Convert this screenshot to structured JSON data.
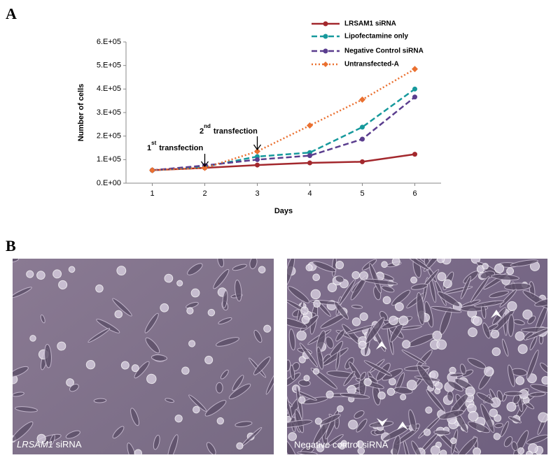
{
  "panel_a": {
    "label": "A",
    "chart_data": {
      "type": "line",
      "x": [
        1,
        2,
        3,
        4,
        5,
        6
      ],
      "xlim": [
        0.5,
        6.5
      ],
      "xticks": [
        1,
        2,
        3,
        4,
        5,
        6
      ],
      "ylim": [
        0,
        600000
      ],
      "yticks": [
        {
          "value": 0,
          "label": "0.E+00"
        },
        {
          "value": 100000,
          "label": "1.E+05"
        },
        {
          "value": 200000,
          "label": "2.E+05"
        },
        {
          "value": 300000,
          "label": "3.E+05"
        },
        {
          "value": 400000,
          "label": "4.E+05"
        },
        {
          "value": 500000,
          "label": "5.E+05"
        },
        {
          "value": 600000,
          "label": "6.E+05"
        }
      ],
      "x_label": "Days",
      "y_label": "Number of cells",
      "grid": false,
      "legend": "upper right",
      "series": [
        {
          "name": "LRSAM1 siRNA",
          "color": "#a3282d",
          "linestyle": "solid",
          "marker": "circle",
          "values": [
            55000,
            65000,
            77000,
            86000,
            91000,
            123000
          ]
        },
        {
          "name": "Lipofectamine only",
          "color": "#16999c",
          "linestyle": "dashed",
          "marker": "circle",
          "values": [
            55000,
            70000,
            113000,
            130000,
            238000,
            400000
          ]
        },
        {
          "name": "Negative Control siRNA",
          "color": "#5a3d8e",
          "linestyle": "dashed",
          "marker": "circle",
          "values": [
            55000,
            75000,
            100000,
            117000,
            187000,
            366000
          ]
        },
        {
          "name": "Untransfected-A",
          "color": "#ea7030",
          "linestyle": "dotted",
          "marker": "diamond",
          "values": [
            55000,
            65000,
            135000,
            245000,
            355000,
            485000
          ]
        }
      ],
      "annotations": [
        {
          "number": "1",
          "suffix": "st",
          "text": "transfection"
        },
        {
          "number": "2",
          "suffix": "nd",
          "text": "transfection"
        }
      ]
    }
  },
  "panel_b": {
    "label": "B",
    "images": [
      {
        "gene": "LRSAM1",
        "caption": "siRNA"
      },
      {
        "caption": "Negative control siRNA"
      }
    ]
  }
}
